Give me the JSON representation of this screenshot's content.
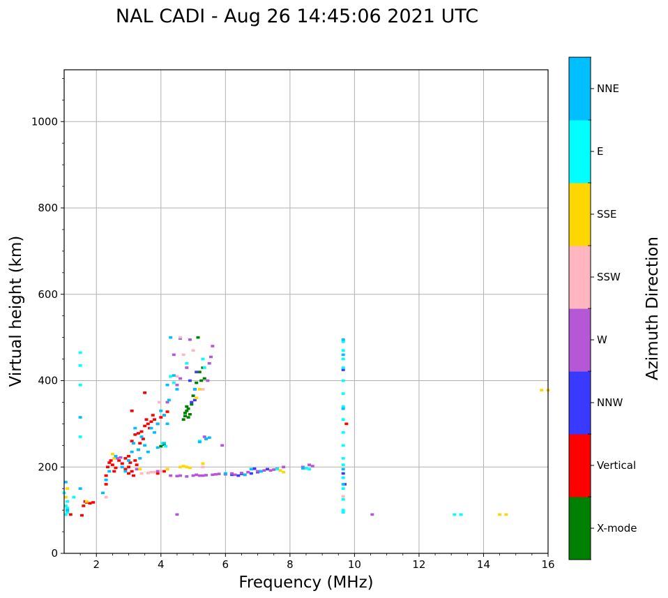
{
  "chart_data": {
    "type": "scatter",
    "title": "NAL CADI - Aug 26 14:45:06 2021 UTC",
    "xlabel": "Frequency (MHz)",
    "ylabel": "Virtual height (km)",
    "xlim": [
      1,
      16
    ],
    "ylim": [
      0,
      1120
    ],
    "xticks": [
      2,
      4,
      6,
      8,
      10,
      12,
      14,
      16
    ],
    "yticks": [
      0,
      200,
      400,
      600,
      800,
      1000
    ],
    "grid": true,
    "colorbar": {
      "label": "Azimuth Direction",
      "entries": [
        {
          "name": "X-mode",
          "color": "#008000"
        },
        {
          "name": "Vertical",
          "color": "#ff0000"
        },
        {
          "name": "NNW",
          "color": "#3a3aff"
        },
        {
          "name": "W",
          "color": "#b657d6"
        },
        {
          "name": "SSW",
          "color": "#ffb6c1"
        },
        {
          "name": "SSE",
          "color": "#ffd700"
        },
        {
          "name": "E",
          "color": "#00ffff"
        },
        {
          "name": "NNE",
          "color": "#00bfff"
        }
      ]
    },
    "series": [
      {
        "name": "X-mode",
        "color": "#008000",
        "points": [
          [
            4.0,
            248
          ],
          [
            4.1,
            252
          ],
          [
            4.7,
            310
          ],
          [
            4.75,
            318
          ],
          [
            4.8,
            330
          ],
          [
            4.85,
            335
          ],
          [
            4.9,
            322
          ],
          [
            4.75,
            325
          ],
          [
            4.95,
            345
          ],
          [
            5.0,
            365
          ],
          [
            5.05,
            380
          ],
          [
            5.1,
            395
          ],
          [
            5.2,
            420
          ],
          [
            5.3,
            430
          ],
          [
            5.25,
            400
          ],
          [
            5.35,
            405
          ],
          [
            4.8,
            340
          ],
          [
            4.85,
            315
          ],
          [
            5.15,
            500
          ]
        ]
      },
      {
        "name": "Vertical",
        "color": "#ff0000",
        "points": [
          [
            1.2,
            90
          ],
          [
            1.55,
            88
          ],
          [
            1.6,
            110
          ],
          [
            1.65,
            120
          ],
          [
            1.7,
            118
          ],
          [
            1.8,
            116
          ],
          [
            1.9,
            118
          ],
          [
            2.3,
            160
          ],
          [
            2.3,
            180
          ],
          [
            2.35,
            200
          ],
          [
            2.4,
            210
          ],
          [
            2.5,
            205
          ],
          [
            2.45,
            215
          ],
          [
            2.55,
            190
          ],
          [
            2.6,
            198
          ],
          [
            2.7,
            215
          ],
          [
            2.8,
            208
          ],
          [
            2.9,
            220
          ],
          [
            3.0,
            200
          ],
          [
            3.05,
            210
          ],
          [
            3.1,
            190
          ],
          [
            3.15,
            180
          ],
          [
            3.0,
            225
          ],
          [
            3.2,
            215
          ],
          [
            3.1,
            260
          ],
          [
            3.2,
            275
          ],
          [
            3.3,
            278
          ],
          [
            3.4,
            282
          ],
          [
            3.5,
            295
          ],
          [
            3.6,
            300
          ],
          [
            3.7,
            305
          ],
          [
            3.8,
            310
          ],
          [
            3.9,
            300
          ],
          [
            4.0,
            315
          ],
          [
            4.1,
            320
          ],
          [
            4.2,
            328
          ],
          [
            3.35,
            255
          ],
          [
            3.45,
            265
          ],
          [
            3.55,
            310
          ],
          [
            3.65,
            290
          ],
          [
            3.75,
            320
          ],
          [
            3.5,
            372
          ],
          [
            3.1,
            330
          ],
          [
            3.3,
            240
          ],
          [
            3.0,
            185
          ],
          [
            2.9,
            195
          ],
          [
            4.1,
            190
          ],
          [
            3.9,
            185
          ],
          [
            9.75,
            300
          ],
          [
            3.25,
            205
          ]
        ]
      },
      {
        "name": "NNW",
        "color": "#3a3aff",
        "points": [
          [
            6.2,
            182
          ],
          [
            6.4,
            180
          ],
          [
            6.5,
            184
          ],
          [
            6.6,
            182
          ],
          [
            6.8,
            185
          ],
          [
            7.0,
            188
          ],
          [
            7.3,
            195
          ],
          [
            4.6,
            498
          ],
          [
            4.9,
            400
          ],
          [
            5.1,
            420
          ],
          [
            9.65,
            425
          ],
          [
            9.7,
            160
          ],
          [
            9.65,
            185
          ],
          [
            5.05,
            355
          ],
          [
            4.95,
            350
          ],
          [
            6.9,
            196
          ]
        ]
      },
      {
        "name": "W",
        "color": "#b657d6",
        "points": [
          [
            4.3,
            180
          ],
          [
            4.5,
            179
          ],
          [
            4.8,
            178
          ],
          [
            5.0,
            180
          ],
          [
            5.2,
            180
          ],
          [
            5.4,
            181
          ],
          [
            5.6,
            182
          ],
          [
            5.8,
            184
          ],
          [
            6.0,
            183
          ],
          [
            6.2,
            185
          ],
          [
            6.5,
            186
          ],
          [
            6.7,
            188
          ],
          [
            7.0,
            190
          ],
          [
            7.2,
            192
          ],
          [
            7.4,
            192
          ],
          [
            7.6,
            196
          ],
          [
            7.8,
            200
          ],
          [
            8.4,
            200
          ],
          [
            8.6,
            205
          ],
          [
            8.7,
            202
          ],
          [
            4.5,
            90
          ],
          [
            10.55,
            90
          ],
          [
            4.5,
            390
          ],
          [
            4.8,
            430
          ],
          [
            5.5,
            440
          ],
          [
            5.55,
            455
          ],
          [
            5.45,
            400
          ],
          [
            5.6,
            480
          ],
          [
            5.35,
            270
          ],
          [
            5.4,
            265
          ],
          [
            5.9,
            250
          ],
          [
            3.9,
            190
          ],
          [
            4.6,
            180
          ],
          [
            5.1,
            182
          ],
          [
            5.7,
            183
          ],
          [
            6.3,
            182
          ],
          [
            7.1,
            190
          ],
          [
            7.5,
            194
          ],
          [
            4.9,
            495
          ],
          [
            4.6,
            405
          ],
          [
            4.2,
            350
          ],
          [
            4.4,
            460
          ],
          [
            2.75,
            222
          ],
          [
            2.65,
            220
          ],
          [
            3.25,
            195
          ],
          [
            5.3,
            180
          ]
        ]
      },
      {
        "name": "SSW",
        "color": "#ffb6c1",
        "points": [
          [
            3.4,
            185
          ],
          [
            3.6,
            186
          ],
          [
            3.8,
            188
          ],
          [
            4.0,
            190
          ],
          [
            4.6,
            500
          ],
          [
            4.7,
            460
          ],
          [
            5.0,
            470
          ],
          [
            5.3,
            380
          ],
          [
            2.3,
            130
          ],
          [
            3.7,
            188
          ],
          [
            9.65,
            132
          ],
          [
            4.5,
            410
          ],
          [
            3.95,
            350
          ],
          [
            5.3,
            200
          ]
        ]
      },
      {
        "name": "SSE",
        "color": "#ffd700",
        "points": [
          [
            1.05,
            130
          ],
          [
            1.1,
            150
          ],
          [
            1.7,
            120
          ],
          [
            4.2,
            195
          ],
          [
            4.6,
            200
          ],
          [
            4.7,
            202
          ],
          [
            4.8,
            200
          ],
          [
            4.9,
            198
          ],
          [
            5.3,
            208
          ],
          [
            7.7,
            192
          ],
          [
            7.8,
            188
          ],
          [
            14.5,
            90
          ],
          [
            14.7,
            90
          ],
          [
            15.8,
            378
          ],
          [
            16.0,
            378
          ],
          [
            5.2,
            380
          ],
          [
            5.1,
            360
          ],
          [
            2.55,
            220
          ],
          [
            2.5,
            230
          ],
          [
            3.35,
            195
          ]
        ]
      },
      {
        "name": "E",
        "color": "#00ffff",
        "points": [
          [
            1.05,
            90
          ],
          [
            1.1,
            95
          ],
          [
            1.05,
            110
          ],
          [
            1.1,
            120
          ],
          [
            1.3,
            130
          ],
          [
            1.5,
            465
          ],
          [
            1.5,
            435
          ],
          [
            1.5,
            390
          ],
          [
            1.5,
            270
          ],
          [
            4.05,
            255
          ],
          [
            4.15,
            248
          ],
          [
            5.2,
            260
          ],
          [
            7.6,
            195
          ],
          [
            8.6,
            195
          ],
          [
            9.65,
            490
          ],
          [
            9.65,
            470
          ],
          [
            9.65,
            450
          ],
          [
            9.65,
            430
          ],
          [
            9.65,
            400
          ],
          [
            9.65,
            370
          ],
          [
            9.65,
            340
          ],
          [
            9.65,
            310
          ],
          [
            9.65,
            280
          ],
          [
            9.65,
            250
          ],
          [
            9.65,
            220
          ],
          [
            9.65,
            205
          ],
          [
            9.65,
            175
          ],
          [
            9.65,
            150
          ],
          [
            9.65,
            100
          ],
          [
            9.65,
            95
          ],
          [
            13.1,
            90
          ],
          [
            13.3,
            90
          ],
          [
            4.3,
            410
          ],
          [
            4.4,
            395
          ],
          [
            4.8,
            440
          ],
          [
            5.3,
            450
          ],
          [
            5.35,
            430
          ],
          [
            1.0,
            140
          ],
          [
            1.1,
            105
          ],
          [
            9.65,
            125
          ],
          [
            8.5,
            197
          ]
        ]
      },
      {
        "name": "NNE",
        "color": "#00bfff",
        "points": [
          [
            1.05,
            165
          ],
          [
            1.1,
            100
          ],
          [
            1.5,
            150
          ],
          [
            1.5,
            315
          ],
          [
            2.2,
            140
          ],
          [
            2.3,
            170
          ],
          [
            2.8,
            200
          ],
          [
            2.9,
            190
          ],
          [
            3.0,
            215
          ],
          [
            3.1,
            235
          ],
          [
            3.15,
            255
          ],
          [
            3.2,
            290
          ],
          [
            3.3,
            240
          ],
          [
            3.4,
            270
          ],
          [
            3.5,
            250
          ],
          [
            3.6,
            235
          ],
          [
            3.7,
            290
          ],
          [
            3.8,
            280
          ],
          [
            3.9,
            300
          ],
          [
            4.0,
            330
          ],
          [
            4.1,
            320
          ],
          [
            4.2,
            300
          ],
          [
            4.3,
            500
          ],
          [
            4.2,
            390
          ],
          [
            4.5,
            380
          ],
          [
            5.2,
            258
          ],
          [
            5.4,
            265
          ],
          [
            5.5,
            268
          ],
          [
            6.0,
            185
          ],
          [
            6.6,
            182
          ],
          [
            6.8,
            195
          ],
          [
            7.1,
            190
          ],
          [
            8.4,
            197
          ],
          [
            9.65,
            495
          ],
          [
            9.65,
            460
          ],
          [
            9.65,
            335
          ],
          [
            9.65,
            195
          ],
          [
            9.65,
            160
          ],
          [
            4.25,
            355
          ],
          [
            4.4,
            412
          ],
          [
            5.05,
            380
          ],
          [
            3.35,
            220
          ],
          [
            2.6,
            225
          ],
          [
            2.4,
            190
          ],
          [
            4.1,
            255
          ],
          [
            3.9,
            245
          ]
        ]
      }
    ]
  }
}
